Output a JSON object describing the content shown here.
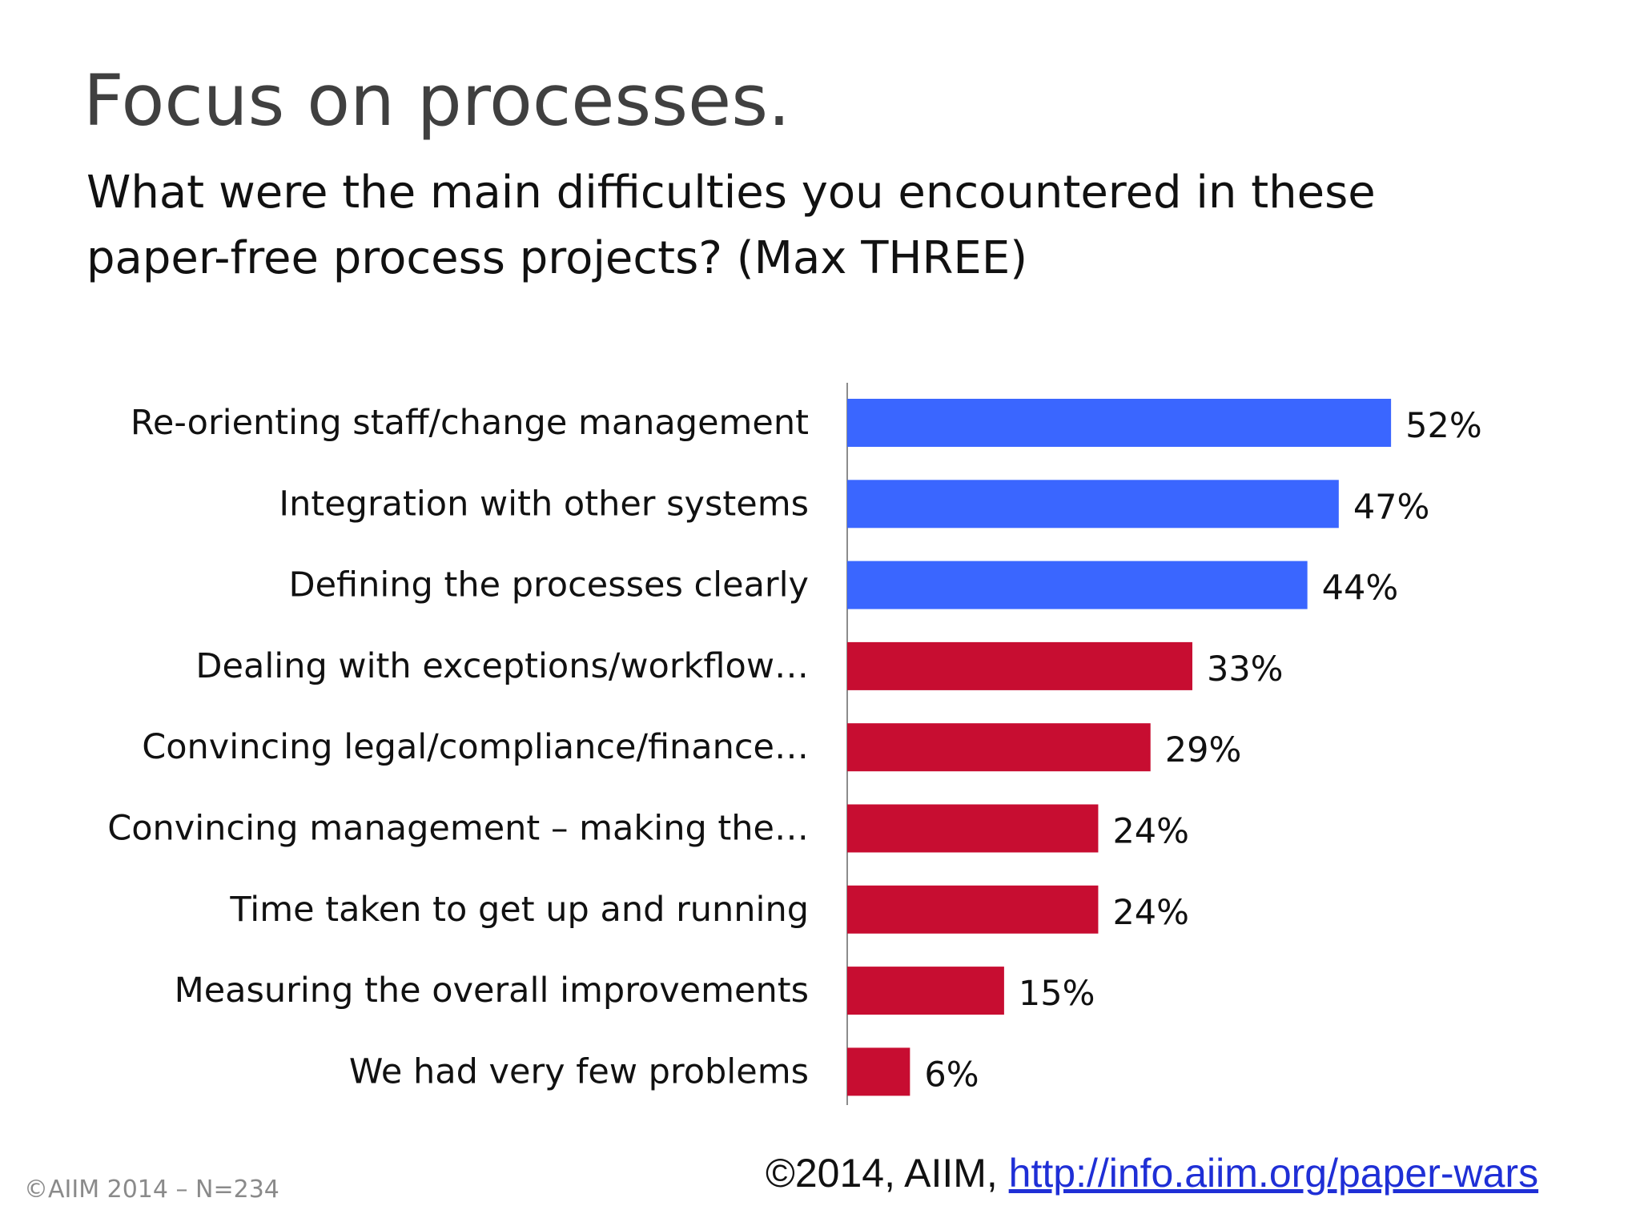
{
  "slide": {
    "title": "Focus on processes.",
    "question": "What were the main difficulties you encountered in these paper-free process projects?  (Max THREE)"
  },
  "footer": {
    "sample": "©AIIM 2014 – N=234",
    "copyright_prefix": "©2014, AIIM, ",
    "link_text": "http://info.aiim.org/paper-wars"
  },
  "colors": {
    "highlight_bar": "#3a66ff",
    "other_bar": "#c70d31",
    "axis": "#8c8c8c"
  },
  "chart_data": {
    "type": "bar",
    "orientation": "horizontal",
    "categories": [
      "Re-orienting staff/change management",
      "Integration with other systems",
      "Defining the processes clearly",
      "Dealing with exceptions/workflow…",
      "Convincing legal/compliance/finance…",
      "Convincing management – making the…",
      "Time taken to get up and running",
      "Measuring the overall improvements",
      "We had very few problems"
    ],
    "values": [
      52,
      47,
      44,
      33,
      29,
      24,
      24,
      15,
      6
    ],
    "value_labels": [
      "52%",
      "47%",
      "44%",
      "33%",
      "29%",
      "24%",
      "24%",
      "15%",
      "6%"
    ],
    "highlighted": [
      true,
      true,
      true,
      false,
      false,
      false,
      false,
      false,
      false
    ],
    "unit": "%",
    "xlim": [
      0,
      60
    ],
    "grid": false,
    "legend": "none"
  }
}
